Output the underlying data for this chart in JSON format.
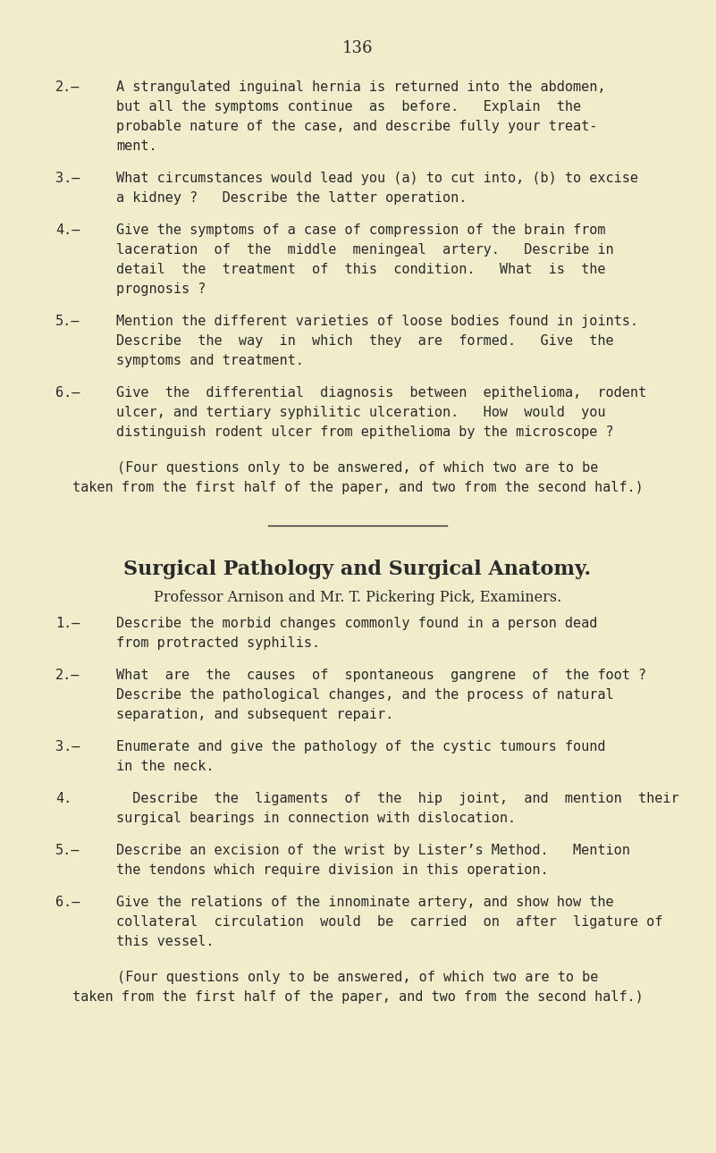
{
  "background_color": "#f0eccc",
  "text_color": "#2a2a2a",
  "page_number": "136",
  "figsize": [
    8.01,
    12.9
  ],
  "dpi": 100,
  "section1_questions": [
    {
      "label": "2.—",
      "lines": [
        "A strangulated inguinal hernia is returned into the abdomen,",
        "but all the symptoms continue  as  before.   Explain  the",
        "probable nature of the case, and describe fully your treat-",
        "ment."
      ]
    },
    {
      "label": "3.—",
      "lines": [
        "What circumstances would lead you (a) to cut into, (b) to excise",
        "a kidney ?   Describe the latter operation."
      ]
    },
    {
      "label": "4.—",
      "lines": [
        "Give the symptoms of a case of compression of the brain from",
        "laceration  of  the  middle  meningeal  artery.   Describe in",
        "detail  the  treatment  of  this  condition.   What  is  the",
        "prognosis ?"
      ]
    },
    {
      "label": "5.—",
      "lines": [
        "Mention the different varieties of loose bodies found in joints.",
        "Describe  the  way  in  which  they  are  formed.   Give  the",
        "symptoms and treatment."
      ]
    },
    {
      "label": "6.—",
      "lines": [
        "Give  the  differential  diagnosis  between  epithelioma,  rodent",
        "ulcer, and tertiary syphilitic ulceration.   How  would  you",
        "distinguish rodent ulcer from epithelioma by the microscope ?"
      ]
    }
  ],
  "section1_footer_lines": [
    "(Four questions only to be answered, of which two are to be",
    "taken from the first half of the paper, and two from the second half.)"
  ],
  "section2_title": "Surgical Pathology and Surgical Anatomy.",
  "section2_subtitle_parts": [
    {
      "text": "Professor A",
      "style": "normal"
    },
    {
      "text": "RNISON",
      "style": "sc"
    },
    {
      "text": " and Mr. T. P",
      "style": "normal"
    },
    {
      "text": "ICKERING",
      "style": "sc"
    },
    {
      "text": " P",
      "style": "normal"
    },
    {
      "text": "ICK",
      "style": "sc"
    },
    {
      "text": ", ",
      "style": "normal"
    },
    {
      "text": "Examiners",
      "style": "italic"
    },
    {
      "text": ".",
      "style": "normal"
    }
  ],
  "section2_subtitle": "Professor Arnison and Mr. T. Pickering Pick, Examiners.",
  "section2_questions": [
    {
      "label": "1.—",
      "lines": [
        "Describe the morbid changes commonly found in a person dead",
        "from protracted syphilis."
      ]
    },
    {
      "label": "2.—",
      "lines": [
        "What  are  the  causes  of  spontaneous  gangrene  of  the foot ?",
        "Describe the pathological changes, and the process of natural",
        "separation, and subsequent repair."
      ]
    },
    {
      "label": "3.—",
      "lines": [
        "Enumerate and give the pathology of the cystic tumours found",
        "in the neck."
      ]
    },
    {
      "label": "4.",
      "lines": [
        "  Describe  the  ligaments  of  the  hip  joint,  and  mention  their",
        "surgical bearings in connection with dislocation."
      ]
    },
    {
      "label": "5.—",
      "lines": [
        "Describe an excision of the wrist by Lister’s Method.   Mention",
        "the tendons which require division in this operation."
      ]
    },
    {
      "label": "6.—",
      "lines": [
        "Give the relations of the innominate artery, and show how the",
        "collateral  circulation  would  be  carried  on  after  ligature of",
        "this vessel."
      ]
    }
  ],
  "section2_footer_lines": [
    "(Four questions only to be answered, of which two are to be",
    "taken from the first half of the paper, and two from the second half.)"
  ]
}
